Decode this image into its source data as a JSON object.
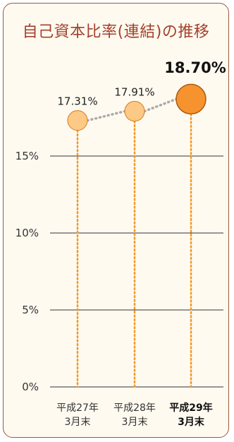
{
  "chart_data": {
    "type": "line",
    "title": "自己資本比率(連結)の推移",
    "categories": [
      {
        "line1": "平成27年",
        "line2": "3月末"
      },
      {
        "line1": "平成28年",
        "line2": "3月末"
      },
      {
        "line1": "平成29年",
        "line2": "3月末"
      }
    ],
    "values": [
      17.31,
      17.91,
      18.7
    ],
    "value_labels": [
      "17.31%",
      "17.91%",
      "18.70%"
    ],
    "yticks": [
      {
        "value": 0,
        "label": "0%"
      },
      {
        "value": 5,
        "label": "5%"
      },
      {
        "value": 10,
        "label": "10%"
      },
      {
        "value": 15,
        "label": "15%"
      }
    ],
    "ylim": [
      0,
      20
    ],
    "grid": true,
    "highlight_index": 2,
    "colors": {
      "marker": "#fcc987",
      "marker_highlight": "#f7932f",
      "marker_stroke": "#d97a1e",
      "drop_line": "#f09a2a",
      "connector": "#aaaaaa",
      "title": "#a3412c",
      "border": "#9b5a3c"
    }
  }
}
